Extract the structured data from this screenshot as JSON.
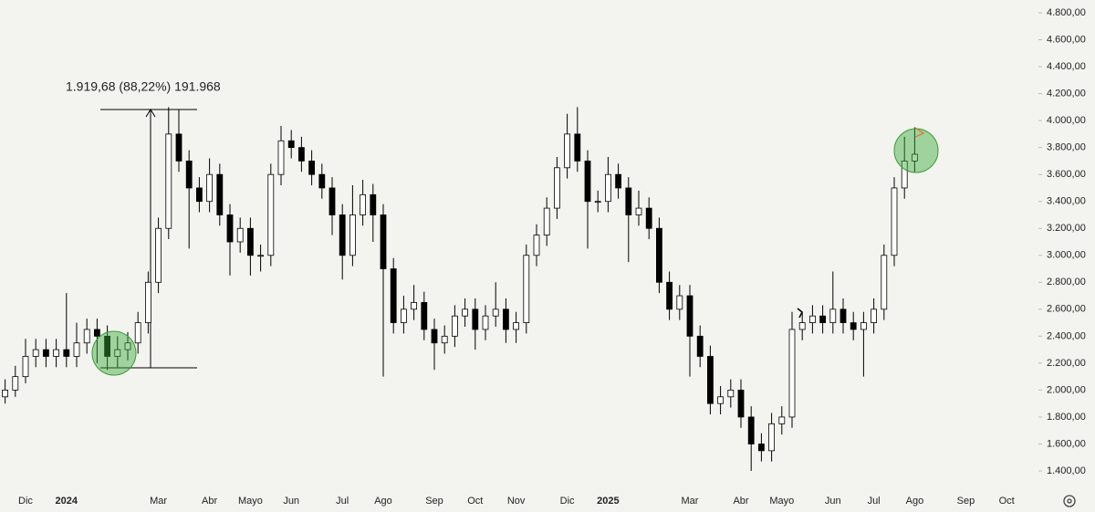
{
  "chart_data": {
    "type": "candlestick",
    "annotation": "1.919,68 (88,22%) 191.968",
    "categories": [
      null,
      null,
      "Dic",
      null,
      null,
      null,
      "2024",
      null,
      null,
      null,
      null,
      null,
      null,
      null,
      null,
      "Mar",
      null,
      null,
      null,
      null,
      "Abr",
      null,
      null,
      null,
      "Mayo",
      null,
      null,
      null,
      "Jun",
      null,
      null,
      null,
      null,
      "Jul",
      null,
      null,
      null,
      "Ago",
      null,
      null,
      null,
      null,
      "Sep",
      null,
      null,
      null,
      "Oct",
      null,
      null,
      null,
      "Nov",
      null,
      null,
      null,
      null,
      "Dic",
      null,
      null,
      null,
      "2025",
      null,
      null,
      null,
      null,
      null,
      null,
      null,
      "Mar",
      null,
      null,
      null,
      null,
      "Abr",
      null,
      null,
      null,
      "Mayo",
      null,
      null,
      null,
      null,
      "Jun",
      null,
      null,
      null,
      "Jul",
      null,
      null,
      null,
      "Ago",
      null,
      null,
      null,
      null,
      "Sep",
      null,
      null,
      null,
      "Oct"
    ],
    "open": [
      1950,
      2000,
      2100,
      2250,
      2300,
      2250,
      2300,
      2250,
      2350,
      2450,
      2400,
      2250,
      2300,
      2350,
      2500,
      2800,
      3200,
      3900,
      3700,
      3500,
      3400,
      3600,
      3300,
      3100,
      3200,
      3000,
      3000,
      3600,
      3850,
      3800,
      3700,
      3600,
      3500,
      3300,
      3000,
      3300,
      3450,
      3300,
      2900,
      2500,
      2600,
      2650,
      2450,
      2350,
      2400,
      2550,
      2600,
      2450,
      2550,
      2600,
      2450,
      2500,
      3000,
      3150,
      3350,
      3650,
      3900,
      3700,
      3400,
      3400,
      3600,
      3500,
      3300,
      3350,
      3200,
      2800,
      2600,
      2700,
      2400,
      2250,
      1900,
      1950,
      2000,
      1800,
      1600,
      1550,
      1750,
      1800,
      2450,
      2500,
      2550,
      2500,
      2600,
      2500,
      2450,
      2500,
      2600,
      3000,
      3500,
      3700,
      null,
      null,
      null,
      null,
      null,
      null,
      null,
      null,
      null
    ],
    "high": [
      2080,
      2180,
      2380,
      2380,
      2380,
      2380,
      2720,
      2500,
      2530,
      2530,
      2480,
      2400,
      2430,
      2580,
      2880,
      3280,
      4100,
      4080,
      3780,
      3580,
      3720,
      3680,
      3380,
      3280,
      3280,
      3080,
      3680,
      3960,
      3930,
      3880,
      3780,
      3680,
      3580,
      3380,
      3520,
      3560,
      3530,
      3380,
      2980,
      2700,
      2780,
      2730,
      2530,
      2480,
      2630,
      2680,
      2680,
      2630,
      2800,
      2680,
      2580,
      3080,
      3230,
      3430,
      3730,
      4050,
      4100,
      3780,
      3480,
      3730,
      3680,
      3580,
      3480,
      3430,
      3280,
      2880,
      2780,
      2780,
      2480,
      2330,
      2030,
      2080,
      2080,
      1880,
      1680,
      1830,
      1880,
      2580,
      2580,
      2630,
      2630,
      2880,
      2680,
      2580,
      2580,
      2680,
      3080,
      3580,
      3880,
      3950,
      null,
      null,
      null,
      null,
      null,
      null,
      null,
      null,
      null
    ],
    "low": [
      1900,
      1950,
      2050,
      2170,
      2170,
      2170,
      2170,
      2170,
      2270,
      2200,
      2150,
      2170,
      2220,
      2270,
      2420,
      2720,
      3120,
      3620,
      3050,
      3320,
      3320,
      3220,
      2850,
      3020,
      2850,
      2880,
      2920,
      3520,
      3720,
      3620,
      3520,
      3420,
      3150,
      2820,
      2920,
      3220,
      3100,
      2100,
      2420,
      2420,
      2520,
      2370,
      2150,
      2270,
      2320,
      2470,
      2300,
      2370,
      2470,
      2350,
      2350,
      2420,
      2920,
      3070,
      3270,
      3570,
      3620,
      3050,
      3320,
      3320,
      3420,
      2950,
      3220,
      3120,
      2720,
      2520,
      2520,
      2100,
      2170,
      1820,
      1820,
      1870,
      1720,
      1400,
      1470,
      1470,
      1670,
      1720,
      2370,
      2420,
      2420,
      2420,
      2420,
      2370,
      2100,
      2420,
      2520,
      2920,
      3420,
      3620,
      null,
      null,
      null,
      null,
      null,
      null,
      null,
      null,
      null
    ],
    "close": [
      2000,
      2100,
      2250,
      2300,
      2250,
      2300,
      2250,
      2350,
      2450,
      2400,
      2250,
      2300,
      2350,
      2500,
      2800,
      3200,
      3900,
      3700,
      3500,
      3400,
      3600,
      3300,
      3100,
      3200,
      3000,
      3000,
      3600,
      3850,
      3800,
      3700,
      3600,
      3500,
      3300,
      3000,
      3300,
      3450,
      3300,
      2900,
      2500,
      2600,
      2650,
      2450,
      2350,
      2400,
      2550,
      2600,
      2450,
      2550,
      2600,
      2450,
      2500,
      3000,
      3150,
      3350,
      3650,
      3900,
      3700,
      3400,
      3400,
      3600,
      3500,
      3300,
      3350,
      3200,
      2800,
      2600,
      2700,
      2400,
      2250,
      1900,
      1950,
      2000,
      1800,
      1600,
      1550,
      1750,
      1800,
      2450,
      2500,
      2550,
      2500,
      2600,
      2500,
      2450,
      2500,
      2600,
      3000,
      3500,
      3700,
      3750,
      null,
      null,
      null,
      null,
      null,
      null,
      null,
      null,
      null
    ],
    "up_color": "#ffffff",
    "down_color": "#000000",
    "ylim": [
      1400,
      4800
    ],
    "yticks": [
      {
        "value": 1400,
        "label": "1.400,00"
      },
      {
        "value": 1600,
        "label": "1.600,00"
      },
      {
        "value": 1800,
        "label": "1.800,00"
      },
      {
        "value": 2000,
        "label": "2.000,00"
      },
      {
        "value": 2200,
        "label": "2.200,00"
      },
      {
        "value": 2400,
        "label": "2.400,00"
      },
      {
        "value": 2600,
        "label": "2.600,00"
      },
      {
        "value": 2800,
        "label": "2.800,00"
      },
      {
        "value": 3000,
        "label": "3.000,00"
      },
      {
        "value": 3200,
        "label": "3.200,00"
      },
      {
        "value": 3400,
        "label": "3.400,00"
      },
      {
        "value": 3600,
        "label": "3.600,00"
      },
      {
        "value": 3800,
        "label": "3.800,00"
      },
      {
        "value": 4000,
        "label": "4.000,00"
      },
      {
        "value": 4200,
        "label": "4.200,00"
      },
      {
        "value": 4400,
        "label": "4.400,00"
      },
      {
        "value": 4600,
        "label": "4.600,00"
      },
      {
        "value": 4800,
        "label": "4.800,00"
      }
    ],
    "grid": false
  }
}
